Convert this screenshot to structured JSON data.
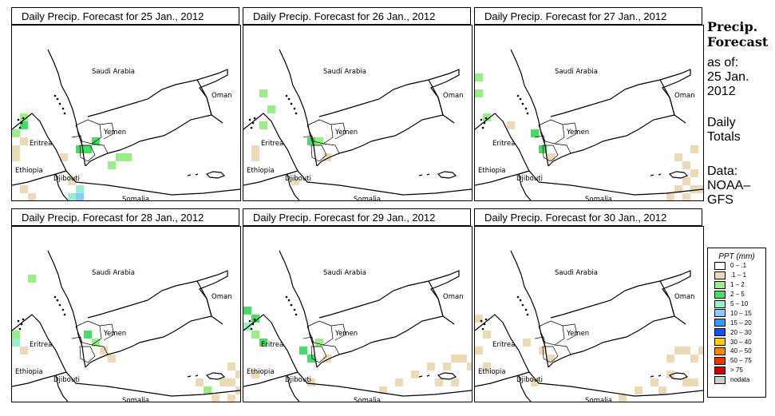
{
  "panels": [
    {
      "title": "Daily Precip. Forecast for  25 Jan., 2012"
    },
    {
      "title": "Daily Precip. Forecast for  26 Jan., 2012"
    },
    {
      "title": "Daily Precip. Forecast for  27 Jan., 2012"
    },
    {
      "title": "Daily Precip. Forecast for  28 Jan., 2012"
    },
    {
      "title": "Daily Precip. Forecast for  29 Jan., 2012"
    },
    {
      "title": "Daily Precip. Forecast for  30 Jan., 2012"
    }
  ],
  "map_labels": {
    "saudi": "Saudi Arabia",
    "oman": "Oman",
    "yemen": "Yemen",
    "eritrea": "Eritrea",
    "ethiopia": "Ethiopia",
    "djibouti": "Djibouti",
    "somalia": "Somalia"
  },
  "sidebar": {
    "title_line1": "Precip.",
    "title_line2": "Forecast",
    "asof": "as of:",
    "date_line1": "25 Jan.",
    "date_line2": "2012",
    "daily_line1": "Daily",
    "daily_line2": "Totals",
    "data_line1": "Data:",
    "data_line2": "NOAA–",
    "data_line3": "GFS"
  },
  "legend": {
    "title": "PPT (mm)",
    "items": [
      {
        "label": "0 – .1",
        "color": "#ffffff"
      },
      {
        "label": ".1 – 1",
        "color": "#ecd9b6"
      },
      {
        "label": "1 – 2",
        "color": "#99ee88"
      },
      {
        "label": "2 – 5",
        "color": "#44dd66"
      },
      {
        "label": "5 – 10",
        "color": "#99eecc"
      },
      {
        "label": "10 – 15",
        "color": "#88ccff"
      },
      {
        "label": "15 – 20",
        "color": "#3399ff"
      },
      {
        "label": "20 – 30",
        "color": "#1155ee"
      },
      {
        "label": "30 – 40",
        "color": "#ffcc00"
      },
      {
        "label": "40 – 50",
        "color": "#ff8800"
      },
      {
        "label": "50 – 75",
        "color": "#ee3300"
      },
      {
        "label": "> 75",
        "color": "#cc0000"
      },
      {
        "label": "nodata",
        "color": "#cccccc"
      }
    ]
  },
  "precip_cells": [
    [
      [
        0,
        150,
        "#ecd9b6"
      ],
      [
        0,
        160,
        "#ecd9b6"
      ],
      [
        10,
        140,
        "#ecd9b6"
      ],
      [
        10,
        200,
        "#ecd9b6"
      ],
      [
        20,
        210,
        "#ecd9b6"
      ],
      [
        60,
        160,
        "#ecd9b6"
      ],
      [
        70,
        190,
        "#ecd9b6"
      ],
      [
        140,
        160,
        "#99ee88"
      ],
      [
        130,
        160,
        "#99ee88"
      ],
      [
        120,
        170,
        "#99ee88"
      ],
      [
        100,
        140,
        "#44dd66"
      ],
      [
        90,
        150,
        "#44dd66"
      ],
      [
        80,
        150,
        "#44dd66"
      ],
      [
        80,
        200,
        "#99eecc"
      ],
      [
        80,
        210,
        "#88ccff"
      ],
      [
        70,
        210,
        "#99eecc"
      ],
      [
        10,
        110,
        "#99ee88"
      ],
      [
        10,
        120,
        "#44dd66"
      ],
      [
        0,
        130,
        "#99ee88"
      ]
    ],
    [
      [
        10,
        150,
        "#ecd9b6"
      ],
      [
        10,
        160,
        "#ecd9b6"
      ],
      [
        20,
        80,
        "#99ee88"
      ],
      [
        30,
        100,
        "#99ee88"
      ],
      [
        60,
        190,
        "#ecd9b6"
      ],
      [
        80,
        140,
        "#44dd66"
      ],
      [
        90,
        140,
        "#99ee88"
      ],
      [
        100,
        160,
        "#ecd9b6"
      ],
      [
        20,
        120,
        "#99ee88"
      ]
    ],
    [
      [
        0,
        60,
        "#99ee88"
      ],
      [
        0,
        80,
        "#99ee88"
      ],
      [
        10,
        110,
        "#99ee88"
      ],
      [
        40,
        120,
        "#ecd9b6"
      ],
      [
        70,
        130,
        "#44dd66"
      ],
      [
        80,
        150,
        "#44dd66"
      ],
      [
        90,
        160,
        "#ecd9b6"
      ],
      [
        250,
        160,
        "#ecd9b6"
      ],
      [
        260,
        170,
        "#ecd9b6"
      ],
      [
        270,
        150,
        "#ecd9b6"
      ],
      [
        260,
        190,
        "#ecd9b6"
      ],
      [
        250,
        200,
        "#ecd9b6"
      ],
      [
        270,
        200,
        "#ecd9b6"
      ],
      [
        240,
        210,
        "#ecd9b6"
      ],
      [
        260,
        210,
        "#ecd9b6"
      ],
      [
        270,
        180,
        "#ecd9b6"
      ],
      [
        280,
        200,
        "#ecd9b6"
      ]
    ],
    [
      [
        20,
        60,
        "#99ee88"
      ],
      [
        0,
        130,
        "#99ee88"
      ],
      [
        0,
        140,
        "#99eecc"
      ],
      [
        10,
        150,
        "#ecd9b6"
      ],
      [
        90,
        130,
        "#44dd66"
      ],
      [
        100,
        140,
        "#99ee88"
      ],
      [
        110,
        150,
        "#ecd9b6"
      ],
      [
        120,
        160,
        "#ecd9b6"
      ],
      [
        260,
        190,
        "#ecd9b6"
      ],
      [
        270,
        170,
        "#ecd9b6"
      ],
      [
        270,
        190,
        "#ecd9b6"
      ],
      [
        280,
        180,
        "#ecd9b6"
      ],
      [
        250,
        210,
        "#ecd9b6"
      ],
      [
        240,
        200,
        "#99ee88"
      ],
      [
        230,
        190,
        "#ecd9b6"
      ],
      [
        270,
        210,
        "#ecd9b6"
      ],
      [
        280,
        200,
        "#ecd9b6"
      ]
    ],
    [
      [
        0,
        100,
        "#44dd66"
      ],
      [
        10,
        110,
        "#44dd66"
      ],
      [
        0,
        120,
        "#99eecc"
      ],
      [
        10,
        130,
        "#99ee88"
      ],
      [
        20,
        140,
        "#44dd66"
      ],
      [
        70,
        150,
        "#44dd66"
      ],
      [
        80,
        160,
        "#44dd66"
      ],
      [
        90,
        140,
        "#99ee88"
      ],
      [
        100,
        160,
        "#ecd9b6"
      ],
      [
        80,
        190,
        "#ecd9b6"
      ],
      [
        170,
        200,
        "#ecd9b6"
      ],
      [
        190,
        190,
        "#ecd9b6"
      ],
      [
        210,
        180,
        "#ecd9b6"
      ],
      [
        230,
        170,
        "#ecd9b6"
      ],
      [
        250,
        170,
        "#ecd9b6"
      ],
      [
        260,
        160,
        "#ecd9b6"
      ],
      [
        270,
        160,
        "#ecd9b6"
      ],
      [
        240,
        190,
        "#ecd9b6"
      ],
      [
        260,
        190,
        "#ecd9b6"
      ],
      [
        280,
        170,
        "#ecd9b6"
      ],
      [
        10,
        180,
        "#ecd9b6"
      ]
    ],
    [
      [
        0,
        110,
        "#ecd9b6"
      ],
      [
        10,
        130,
        "#ecd9b6"
      ],
      [
        0,
        150,
        "#ecd9b6"
      ],
      [
        60,
        140,
        "#ecd9b6"
      ],
      [
        80,
        150,
        "#ecd9b6"
      ],
      [
        90,
        160,
        "#ecd9b6"
      ],
      [
        70,
        190,
        "#ecd9b6"
      ],
      [
        180,
        210,
        "#ecd9b6"
      ],
      [
        200,
        200,
        "#ecd9b6"
      ],
      [
        220,
        190,
        "#ecd9b6"
      ],
      [
        240,
        160,
        "#ecd9b6"
      ],
      [
        250,
        150,
        "#ecd9b6"
      ],
      [
        260,
        150,
        "#ecd9b6"
      ],
      [
        270,
        160,
        "#ecd9b6"
      ],
      [
        280,
        150,
        "#ecd9b6"
      ],
      [
        240,
        180,
        "#ecd9b6"
      ],
      [
        260,
        190,
        "#ecd9b6"
      ],
      [
        270,
        190,
        "#ecd9b6"
      ],
      [
        230,
        200,
        "#ecd9b6"
      ],
      [
        10,
        170,
        "#ecd9b6"
      ]
    ]
  ]
}
